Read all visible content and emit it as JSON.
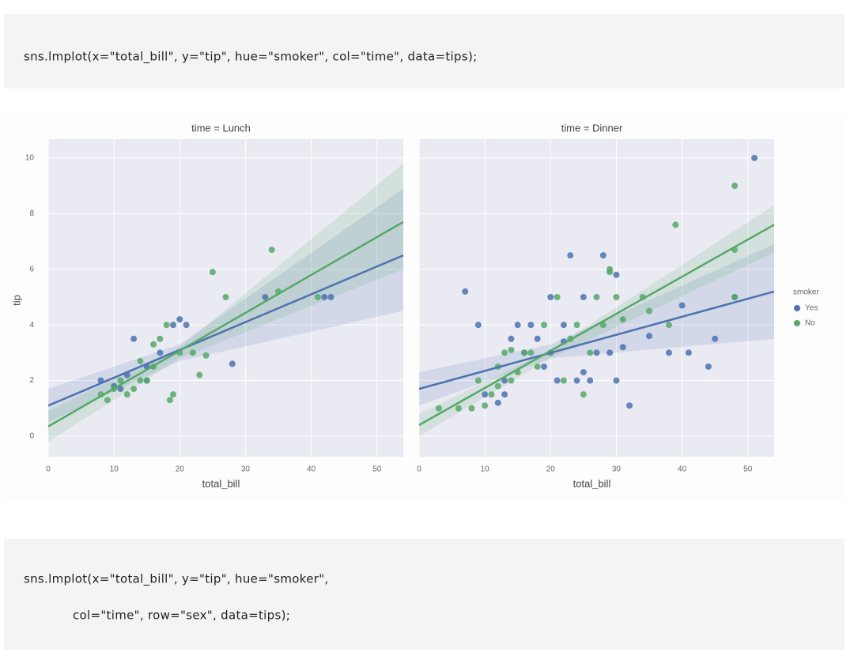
{
  "code_blocks": [
    "sns.lmplot(x=\"total_bill\", y=\"tip\", hue=\"smoker\", col=\"time\", data=tips);",
    "sns.lmplot(x=\"total_bill\", y=\"tip\", hue=\"smoker\",",
    "col=\"time\", row=\"sex\", data=tips);"
  ],
  "chart_data": [
    {
      "type": "scatter",
      "title": "time = Lunch",
      "x_label": "total_bill",
      "y_label": "tip",
      "legend_title": "smoker",
      "xlim": [
        0,
        54
      ],
      "ylim": [
        -0.74,
        10.68
      ],
      "xticks": [
        0,
        10,
        20,
        30,
        40,
        50
      ],
      "yticks": [
        0,
        2,
        4,
        6,
        8,
        10
      ],
      "grid": true,
      "series": [
        {
          "name": "Yes",
          "color": "#4c72b0",
          "x": [
            8,
            10,
            11,
            12,
            13,
            15,
            15,
            17,
            19,
            20,
            21,
            28,
            33,
            42,
            43
          ],
          "y": [
            2,
            1.8,
            1.7,
            2.2,
            3.5,
            2.5,
            2,
            3.0,
            4.0,
            4.2,
            4.0,
            2.6,
            5.0,
            5.0,
            5.0
          ],
          "fit": {
            "x": [
              0,
              54
            ],
            "y": [
              1.1,
              6.5
            ]
          },
          "band_x": [
            0,
            20,
            54
          ],
          "band_lower": [
            0.5,
            2.7,
            4.5
          ],
          "band_upper": [
            1.7,
            3.3,
            8.9
          ]
        },
        {
          "name": "No",
          "color": "#55a868",
          "x": [
            8,
            9,
            10,
            11,
            12,
            13,
            14,
            14,
            15,
            16,
            16,
            17,
            18,
            18.5,
            19,
            20,
            22,
            23,
            24,
            25,
            27,
            34,
            35,
            41
          ],
          "y": [
            1.5,
            1.3,
            1.7,
            2,
            1.5,
            1.7,
            2,
            2.7,
            2,
            3.3,
            2.5,
            3.5,
            4,
            1.3,
            1.5,
            3,
            3,
            2.2,
            2.9,
            5.9,
            5,
            6.7,
            5.2,
            5
          ],
          "fit": {
            "x": [
              0,
              54
            ],
            "y": [
              0.35,
              7.7
            ]
          },
          "band_x": [
            0,
            20,
            54
          ],
          "band_lower": [
            -0.2,
            2.8,
            6.0
          ],
          "band_upper": [
            0.9,
            3.2,
            9.8
          ]
        }
      ]
    },
    {
      "type": "scatter",
      "title": "time = Dinner",
      "x_label": "total_bill",
      "xlim": [
        0,
        54
      ],
      "ylim": [
        -0.74,
        10.68
      ],
      "xticks": [
        0,
        10,
        20,
        30,
        40,
        50
      ],
      "yticks": [
        0,
        2,
        4,
        6,
        8,
        10
      ],
      "grid": true,
      "series": [
        {
          "name": "Yes",
          "color": "#4c72b0",
          "x": [
            7,
            9,
            10,
            12,
            13,
            13,
            14,
            15,
            16,
            17,
            18,
            19,
            20,
            20,
            21,
            22,
            22,
            23,
            24,
            25,
            25,
            26,
            27,
            28,
            29,
            30,
            30,
            31,
            32,
            35,
            38,
            40,
            41,
            44,
            45,
            48,
            51
          ],
          "y": [
            5.2,
            4,
            1.5,
            1.2,
            2,
            1.5,
            3.5,
            4,
            3,
            4,
            3.5,
            2.5,
            3,
            5,
            2,
            4,
            3.4,
            6.5,
            2,
            5,
            2.3,
            2,
            3,
            6.5,
            3,
            2,
            5.8,
            3.2,
            1.1,
            3.6,
            3,
            4.7,
            3,
            2.5,
            3.5,
            5,
            10
          ],
          "fit": {
            "x": [
              0,
              54
            ],
            "y": [
              1.7,
              5.2
            ]
          },
          "band_x": [
            0,
            20,
            54
          ],
          "band_lower": [
            1.1,
            2.8,
            3.5
          ],
          "band_upper": [
            2.3,
            3.3,
            6.9
          ]
        },
        {
          "name": "No",
          "color": "#55a868",
          "x": [
            3,
            6,
            8,
            9,
            10,
            11,
            12,
            12,
            13,
            14,
            14,
            15,
            16,
            17,
            18,
            19,
            20,
            21,
            22,
            23,
            24,
            25,
            26,
            27,
            28,
            29,
            29,
            30,
            31,
            34,
            35,
            38,
            39,
            48,
            48,
            48
          ],
          "y": [
            1,
            1,
            1,
            2,
            1.1,
            1.5,
            2.5,
            1.8,
            3,
            2,
            3.1,
            2.3,
            3,
            3,
            2.5,
            4,
            3,
            5,
            2,
            3.5,
            4,
            1.5,
            3,
            5,
            4,
            5.9,
            6.0,
            5,
            4.2,
            5,
            4.5,
            4,
            7.6,
            9,
            6.7,
            5
          ],
          "fit": {
            "x": [
              0,
              54
            ],
            "y": [
              0.4,
              7.6
            ]
          },
          "band_x": [
            0,
            20,
            54
          ],
          "band_lower": [
            0,
            2.8,
            6.6
          ],
          "band_upper": [
            0.8,
            3.1,
            8.3
          ]
        }
      ]
    }
  ]
}
